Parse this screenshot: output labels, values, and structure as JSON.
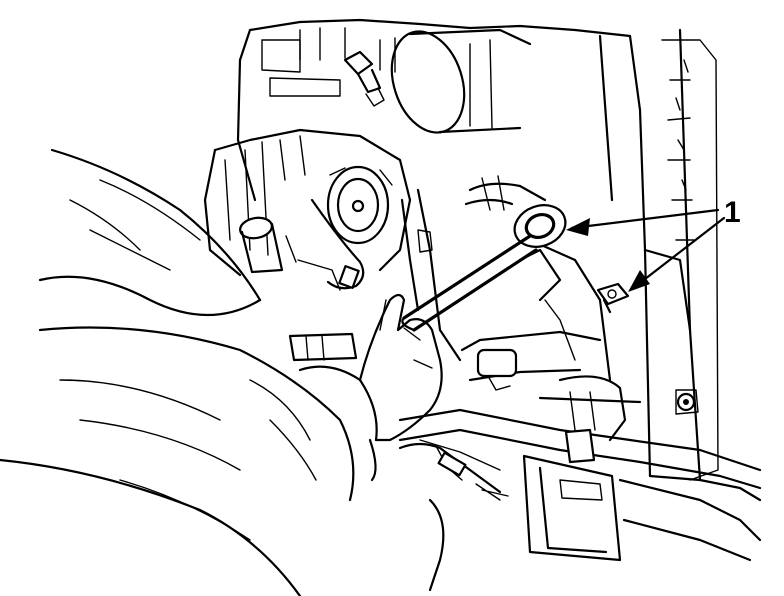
{
  "callouts": [
    {
      "label": "1"
    }
  ]
}
